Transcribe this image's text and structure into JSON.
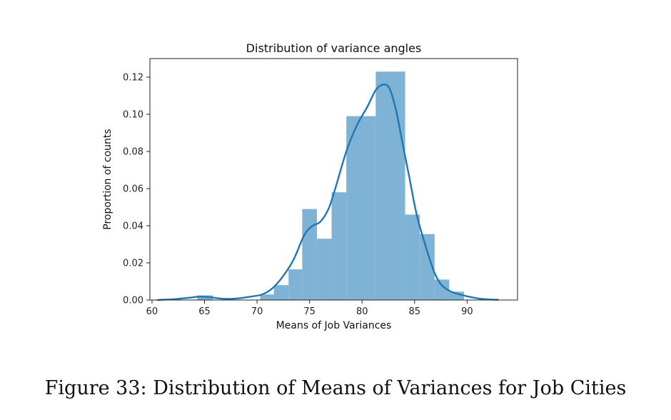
{
  "figure": {
    "caption": "Figure 33: Distribution of Means of Variances for Job Cities"
  },
  "chart_data": {
    "type": "bar",
    "title": "Distribution of variance angles",
    "xlabel": "Means of Job Variances",
    "ylabel": "Proportion of counts",
    "xlim": [
      59.8,
      94.8
    ],
    "ylim": [
      0,
      0.13
    ],
    "xticks": [
      60,
      65,
      70,
      75,
      80,
      85,
      90
    ],
    "yticks": [
      0.0,
      0.02,
      0.04,
      0.06,
      0.08,
      0.1,
      0.12
    ],
    "ytick_labels": [
      "0.00",
      "0.02",
      "0.04",
      "0.06",
      "0.08",
      "0.10",
      "0.12"
    ],
    "grid": false,
    "bar_color": "#7fb3d5",
    "line_color": "#1f77b4",
    "histogram": {
      "bins": [
        {
          "x0": 64.3,
          "x1": 65.8,
          "value": 0.0025
        },
        {
          "x0": 70.3,
          "x1": 71.6,
          "value": 0.003
        },
        {
          "x0": 71.6,
          "x1": 73.0,
          "value": 0.008
        },
        {
          "x0": 73.0,
          "x1": 74.3,
          "value": 0.0165
        },
        {
          "x0": 74.3,
          "x1": 75.7,
          "value": 0.049
        },
        {
          "x0": 75.7,
          "x1": 77.1,
          "value": 0.033
        },
        {
          "x0": 77.1,
          "x1": 78.5,
          "value": 0.058
        },
        {
          "x0": 78.5,
          "x1": 81.3,
          "value": 0.099
        },
        {
          "x0": 81.3,
          "x1": 84.1,
          "value": 0.123
        },
        {
          "x0": 84.1,
          "x1": 85.5,
          "value": 0.046
        },
        {
          "x0": 85.5,
          "x1": 86.9,
          "value": 0.0355
        },
        {
          "x0": 86.9,
          "x1": 88.3,
          "value": 0.011
        },
        {
          "x0": 88.3,
          "x1": 89.7,
          "value": 0.0045
        }
      ]
    },
    "kde": {
      "x": [
        60.5,
        62,
        63.5,
        64.5,
        65.5,
        66.5,
        67.5,
        68.5,
        69.5,
        70.5,
        71.5,
        72.5,
        73.5,
        74.5,
        75.3,
        76.0,
        76.8,
        77.5,
        78.5,
        79.5,
        80.5,
        81.3,
        82.0,
        82.6,
        83.2,
        83.8,
        84.5,
        85.2,
        86.0,
        86.8,
        87.5,
        88.3,
        89.0,
        90.0,
        91.0,
        92.0,
        93.0
      ],
      "y": [
        0.0,
        0.0004,
        0.0012,
        0.0018,
        0.0015,
        0.0008,
        0.0006,
        0.0011,
        0.0019,
        0.003,
        0.0065,
        0.013,
        0.022,
        0.035,
        0.04,
        0.042,
        0.049,
        0.061,
        0.08,
        0.094,
        0.104,
        0.113,
        0.116,
        0.114,
        0.103,
        0.086,
        0.066,
        0.046,
        0.03,
        0.016,
        0.0085,
        0.005,
        0.0035,
        0.002,
        0.0009,
        0.0003,
        0.0001
      ]
    }
  }
}
